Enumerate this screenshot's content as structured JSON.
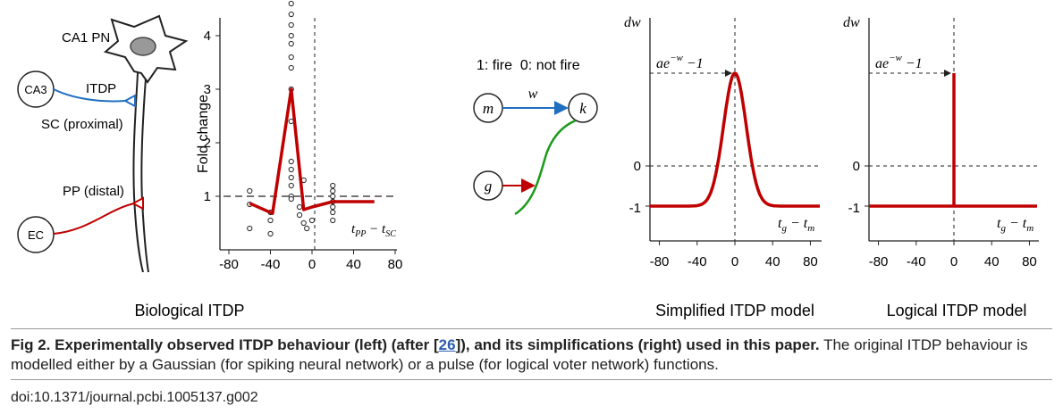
{
  "neuron": {
    "cell_label": "CA1 PN",
    "ca3_label": "CA3",
    "itdp_label": "ITDP",
    "sc_label": "SC (proximal)",
    "pp_label": "PP (distal)",
    "ec_label": "EC",
    "panel_title": "Biological ITDP"
  },
  "network": {
    "legend_text": "1: fire  0: not fire",
    "node_m": "m",
    "node_k": "k",
    "node_g": "g",
    "weight_label": "w"
  },
  "panel_titles": {
    "simplified": "Simplified ITDP model",
    "logical": "Logical ITDP model"
  },
  "model_labels": {
    "dw": "dw",
    "peak": "ae",
    "peak_sup": "−w",
    "peak_tail": " −1",
    "xlabel_main": "t",
    "xlabel_sub1": "g",
    "xlabel_sub2": "m",
    "xlabel_op": " − t"
  },
  "bio_labels": {
    "ylabel": "Fold change",
    "xlabel": "t",
    "xsub1": "PP",
    "xop": " − t",
    "xsub2": "SC"
  },
  "caption": {
    "bold_pre": "Fig 2. Experimentally observed ITDP behaviour (left) (after [",
    "ref": "26",
    "bold_post": "]), and its simplifications (right) used in this paper.",
    "text": " The original ITDP behaviour is modelled either by a Gaussian (for spiking neural network) or a pulse (for logical voter network) functions."
  },
  "doi": "doi:10.1371/journal.pcbi.1005137.g002",
  "colors": {
    "red": "#c00000",
    "blue": "#1f6fc0",
    "green": "#1a9a1a"
  },
  "chart_data": [
    {
      "type": "scatter",
      "title": "Biological ITDP",
      "xlabel": "t_PP − t_SC",
      "ylabel": "Fold change",
      "xlim": [
        -80,
        85
      ],
      "ylim": [
        0,
        4.6
      ],
      "xticks": [
        -80,
        -40,
        0,
        40,
        80
      ],
      "yticks": [
        1,
        2,
        3,
        4
      ],
      "points": [
        [
          -60,
          1.1
        ],
        [
          -60,
          0.85
        ],
        [
          -60,
          0.4
        ],
        [
          -40,
          0.7
        ],
        [
          -40,
          0.55
        ],
        [
          -40,
          0.3
        ],
        [
          -20,
          4.6
        ],
        [
          -20,
          4.4
        ],
        [
          -20,
          4.2
        ],
        [
          -20,
          4.0
        ],
        [
          -20,
          3.85
        ],
        [
          -20,
          3.6
        ],
        [
          -20,
          3.4
        ],
        [
          -20,
          3.0
        ],
        [
          -20,
          2.4
        ],
        [
          -20,
          1.65
        ],
        [
          -20,
          1.5
        ],
        [
          -20,
          1.35
        ],
        [
          -20,
          1.2
        ],
        [
          -20,
          1.0
        ],
        [
          -20,
          0.95
        ],
        [
          -12,
          0.8
        ],
        [
          -12,
          0.65
        ],
        [
          -8,
          1.3
        ],
        [
          -8,
          0.5
        ],
        [
          -5,
          0.4
        ],
        [
          0,
          0.55
        ],
        [
          20,
          1.2
        ],
        [
          20,
          1.1
        ],
        [
          20,
          1.0
        ],
        [
          20,
          0.9
        ],
        [
          20,
          0.8
        ],
        [
          20,
          0.7
        ],
        [
          20,
          0.55
        ]
      ],
      "mean_line": {
        "x": [
          -60,
          -38,
          -20,
          -8,
          0,
          20,
          60
        ],
        "y": [
          0.87,
          0.68,
          3.0,
          0.75,
          0.8,
          0.9,
          0.9
        ]
      }
    },
    {
      "type": "line",
      "title": "Simplified ITDP model",
      "xlabel": "t_g − t_m",
      "ylabel": "dw",
      "xlim": [
        -90,
        90
      ],
      "xticks": [
        -80,
        -40,
        0,
        40,
        80
      ],
      "yticks": [
        "-1",
        "0"
      ],
      "curve": "gaussian",
      "baseline": -1,
      "peak_label": "ae^(−w) −1"
    },
    {
      "type": "line",
      "title": "Logical ITDP model",
      "xlabel": "t_g − t_m",
      "ylabel": "dw",
      "xlim": [
        -90,
        90
      ],
      "xticks": [
        -80,
        -40,
        0,
        40,
        80
      ],
      "yticks": [
        "-1",
        "0"
      ],
      "curve": "pulse",
      "baseline": -1,
      "peak_label": "ae^(−w) −1"
    }
  ]
}
